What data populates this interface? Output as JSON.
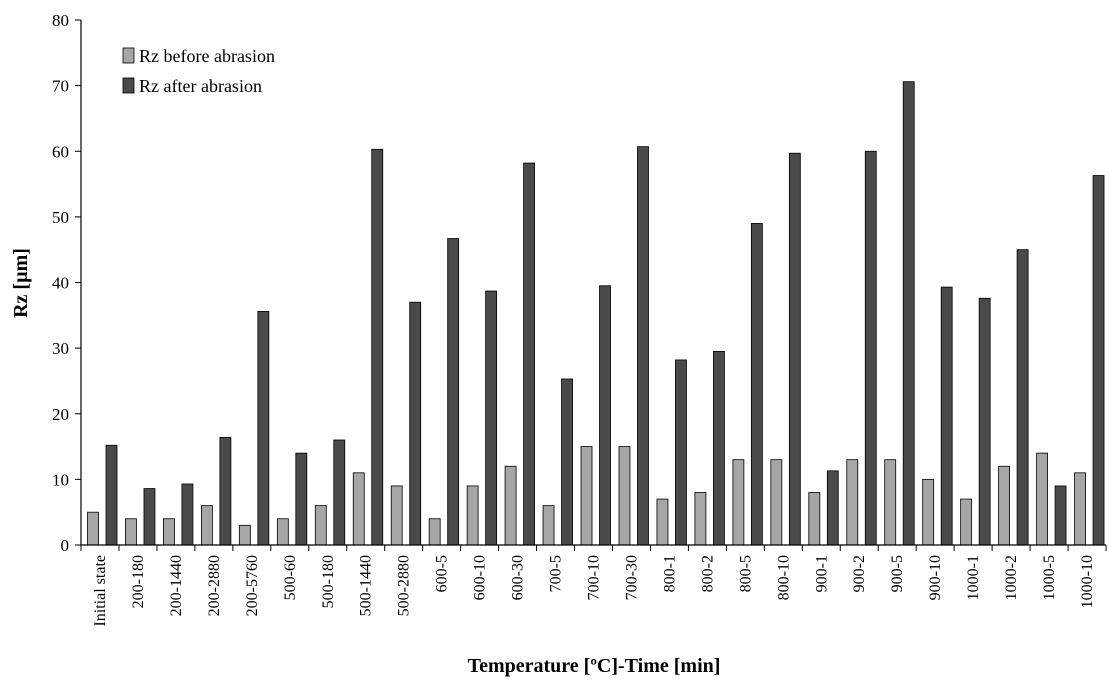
{
  "chart_data": {
    "type": "bar",
    "xlabel": "Temperature [ºC]-Time [min]",
    "ylabel": "Rz [µm]",
    "ylim": [
      0,
      80
    ],
    "yticks": [
      0,
      10,
      20,
      30,
      40,
      50,
      60,
      70,
      80
    ],
    "grid": false,
    "legend_position": "top-left",
    "categories": [
      "Initial state",
      "200-180",
      "200-1440",
      "200-2880",
      "200-5760",
      "500-60",
      "500-180",
      "500-1440",
      "500-2880",
      "600-5",
      "600-10",
      "600-30",
      "700-5",
      "700-10",
      "700-30",
      "800-1",
      "800-2",
      "800-5",
      "800-10",
      "900-1",
      "900-2",
      "900-5",
      "900-10",
      "1000-1",
      "1000-2",
      "1000-5",
      "1000-10"
    ],
    "series": [
      {
        "name": "Rz before abrasion",
        "color": "#a6a6a6",
        "values": [
          5,
          4,
          4,
          6,
          3,
          4,
          6,
          11,
          9,
          4,
          9,
          12,
          6,
          15,
          15,
          7,
          8,
          13,
          13,
          8,
          13,
          13,
          10,
          7,
          12,
          14,
          11
        ]
      },
      {
        "name": "Rz after abrasion",
        "color": "#4a4a4a",
        "values": [
          15.2,
          8.6,
          9.3,
          16.4,
          35.6,
          14,
          16,
          60.3,
          37,
          46.7,
          38.7,
          58.2,
          25.3,
          39.5,
          60.7,
          28.2,
          29.5,
          49,
          59.7,
          11.3,
          60,
          70.6,
          39.3,
          37.6,
          45,
          9,
          56.3
        ]
      }
    ]
  }
}
